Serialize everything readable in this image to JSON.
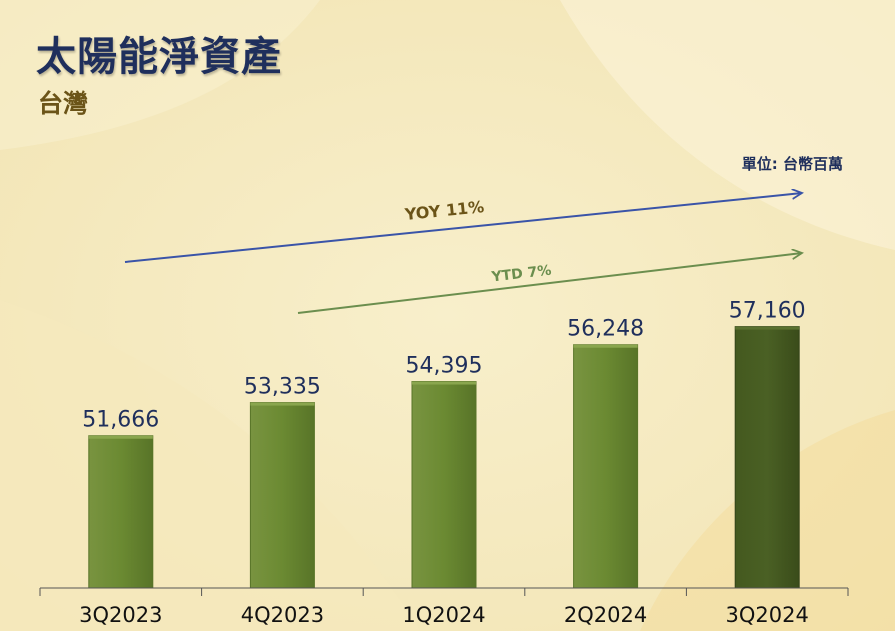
{
  "header": {
    "title": "太陽能淨資產",
    "subtitle": "台灣",
    "unit_note": "單位: 台幣百萬"
  },
  "colors": {
    "bar": "#6b8a32",
    "bar_highlight": "#44591f",
    "yoy_arrow": "#3a54a8",
    "ytd_arrow": "#6b8e4e",
    "yoy_text": "#6b5418",
    "ytd_text": "#6b8e4e",
    "value_text": "#1f2f5c"
  },
  "chart_data": {
    "type": "bar",
    "categories": [
      "3Q2023",
      "4Q2023",
      "1Q2024",
      "2Q2024",
      "3Q2024"
    ],
    "values": [
      51666,
      53335,
      54395,
      56248,
      57160
    ],
    "value_labels": [
      "51,666",
      "53,335",
      "54,395",
      "56,248",
      "57,160"
    ],
    "highlight_index": 4,
    "title": "",
    "xlabel": "",
    "ylabel": "",
    "ylim": [
      44000,
      58500
    ],
    "annotations": [
      {
        "label": "YOY 11%",
        "from": "3Q2023",
        "to": "3Q2024"
      },
      {
        "label": "YTD 7%",
        "from": "4Q2023",
        "to": "3Q2024"
      }
    ]
  }
}
